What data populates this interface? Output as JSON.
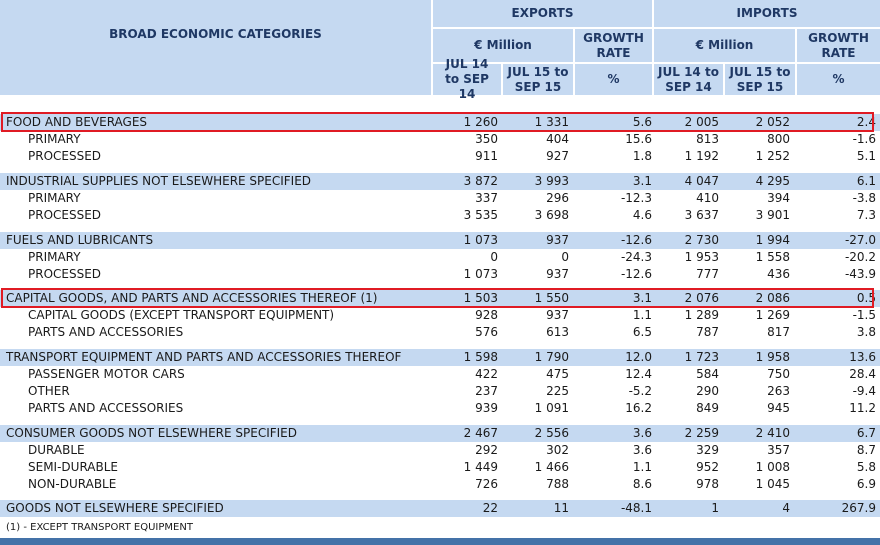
{
  "header": {
    "category_title": "BROAD ECONOMIC CATEGORIES",
    "exports": "EXPORTS",
    "imports": "IMPORTS",
    "million": "€ Million",
    "growth_rate": "GROWTH RATE",
    "period1": "JUL 14 to SEP 14",
    "period2": "JUL 15 to SEP 15",
    "pct": "%"
  },
  "rows": [
    {
      "label": "FOOD AND BEVERAGES",
      "type": "cat",
      "ex1": "1 260",
      "ex2": "1 331",
      "exg": "5.6",
      "im1": "2 005",
      "im2": "2 052",
      "img": "2.4"
    },
    {
      "label": "PRIMARY",
      "type": "sub",
      "ex1": "350",
      "ex2": "404",
      "exg": "15.6",
      "im1": "813",
      "im2": "800",
      "img": "-1.6"
    },
    {
      "label": "PROCESSED",
      "type": "sub",
      "ex1": "911",
      "ex2": "927",
      "exg": "1.8",
      "im1": "1 192",
      "im2": "1 252",
      "img": "5.1"
    },
    {
      "label": "INDUSTRIAL SUPPLIES NOT ELSEWHERE SPECIFIED",
      "type": "cat",
      "ex1": "3 872",
      "ex2": "3 993",
      "exg": "3.1",
      "im1": "4 047",
      "im2": "4 295",
      "img": "6.1"
    },
    {
      "label": "PRIMARY",
      "type": "sub",
      "ex1": "337",
      "ex2": "296",
      "exg": "-12.3",
      "im1": "410",
      "im2": "394",
      "img": "-3.8"
    },
    {
      "label": "PROCESSED",
      "type": "sub",
      "ex1": "3 535",
      "ex2": "3 698",
      "exg": "4.6",
      "im1": "3 637",
      "im2": "3 901",
      "img": "7.3"
    },
    {
      "label": "FUELS AND LUBRICANTS",
      "type": "cat",
      "ex1": "1 073",
      "ex2": "937",
      "exg": "-12.6",
      "im1": "2 730",
      "im2": "1 994",
      "img": "-27.0"
    },
    {
      "label": "PRIMARY",
      "type": "sub",
      "ex1": "0",
      "ex2": "0",
      "exg": "-24.3",
      "im1": "1 953",
      "im2": "1 558",
      "img": "-20.2"
    },
    {
      "label": "PROCESSED",
      "type": "sub",
      "ex1": "1 073",
      "ex2": "937",
      "exg": "-12.6",
      "im1": "777",
      "im2": "436",
      "img": "-43.9"
    },
    {
      "label": "CAPITAL GOODS, AND PARTS AND ACCESSORIES THEREOF (1)",
      "type": "cat",
      "ex1": "1 503",
      "ex2": "1 550",
      "exg": "3.1",
      "im1": "2 076",
      "im2": "2 086",
      "img": "0.5"
    },
    {
      "label": "CAPITAL GOODS (EXCEPT TRANSPORT EQUIPMENT)",
      "type": "sub",
      "ex1": "928",
      "ex2": "937",
      "exg": "1.1",
      "im1": "1 289",
      "im2": "1 269",
      "img": "-1.5"
    },
    {
      "label": "PARTS AND ACCESSORIES",
      "type": "sub",
      "ex1": "576",
      "ex2": "613",
      "exg": "6.5",
      "im1": "787",
      "im2": "817",
      "img": "3.8"
    },
    {
      "label": "TRANSPORT EQUIPMENT AND PARTS AND ACCESSORIES THEREOF",
      "type": "cat",
      "ex1": "1 598",
      "ex2": "1 790",
      "exg": "12.0",
      "im1": "1 723",
      "im2": "1 958",
      "img": "13.6"
    },
    {
      "label": "PASSENGER MOTOR CARS",
      "type": "sub",
      "ex1": "422",
      "ex2": "475",
      "exg": "12.4",
      "im1": "584",
      "im2": "750",
      "img": "28.4"
    },
    {
      "label": "OTHER",
      "type": "sub",
      "ex1": "237",
      "ex2": "225",
      "exg": "-5.2",
      "im1": "290",
      "im2": "263",
      "img": "-9.4"
    },
    {
      "label": "PARTS AND ACCESSORIES",
      "type": "sub",
      "ex1": "939",
      "ex2": "1 091",
      "exg": "16.2",
      "im1": "849",
      "im2": "945",
      "img": "11.2"
    },
    {
      "label": "CONSUMER GOODS NOT ELSEWHERE SPECIFIED",
      "type": "cat",
      "ex1": "2 467",
      "ex2": "2 556",
      "exg": "3.6",
      "im1": "2 259",
      "im2": "2 410",
      "img": "6.7"
    },
    {
      "label": "DURABLE",
      "type": "sub",
      "ex1": "292",
      "ex2": "302",
      "exg": "3.6",
      "im1": "329",
      "im2": "357",
      "img": "8.7"
    },
    {
      "label": "SEMI-DURABLE",
      "type": "sub",
      "ex1": "1 449",
      "ex2": "1 466",
      "exg": "1.1",
      "im1": "952",
      "im2": "1 008",
      "img": "5.8"
    },
    {
      "label": "NON-DURABLE",
      "type": "sub",
      "ex1": "726",
      "ex2": "788",
      "exg": "8.6",
      "im1": "978",
      "im2": "1 045",
      "img": "6.9"
    },
    {
      "label": "GOODS NOT ELSEWHERE SPECIFIED",
      "type": "cat",
      "ex1": "22",
      "ex2": "11",
      "exg": "-48.1",
      "im1": "1",
      "im2": "4",
      "img": "267.9"
    }
  ],
  "highlighted_rows": [
    "FOOD AND BEVERAGES",
    "CAPITAL GOODS, AND PARTS AND ACCESSORIES THEREOF (1)"
  ],
  "footnote": "(1) - EXCEPT TRANSPORT EQUIPMENT",
  "colors": {
    "header_bg": "#c5d9f1",
    "header_text": "#1f3864",
    "highlight": "#e01b24",
    "bar": "#4472a8"
  }
}
